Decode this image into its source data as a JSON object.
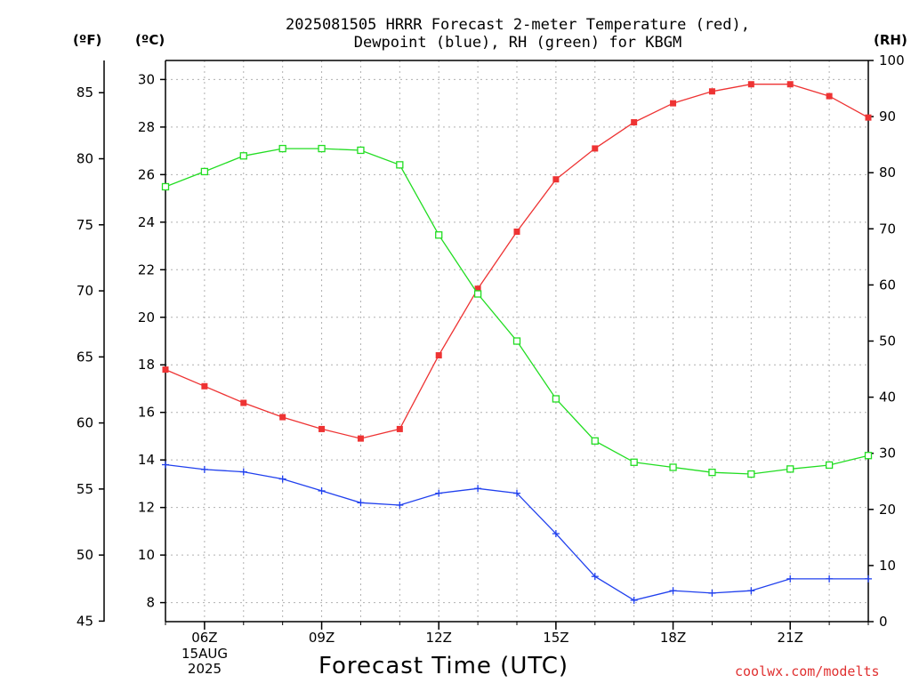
{
  "header": {
    "title_line1": "2025081505 HRRR Forecast 2-meter Temperature (red),",
    "title_line2": "Dewpoint (blue), RH (green) for KBGM",
    "unit_f": "(ºF)",
    "unit_c": "(ºC)",
    "unit_rh": "(RH)"
  },
  "footer": {
    "xlabel": "Forecast Time (UTC)",
    "credit": "coolwx.com/modelts",
    "date_day": "15AUG",
    "date_year": "2025"
  },
  "chart_data": {
    "type": "line",
    "title": "2025081505 HRRR Forecast 2-meter Temperature (red), Dewpoint (blue), RH (green) for KBGM",
    "xlabel": "Forecast Time (UTC)",
    "x_hours_utc": [
      5,
      6,
      7,
      8,
      9,
      10,
      11,
      12,
      13,
      14,
      15,
      16,
      17,
      18,
      19,
      20,
      21,
      22,
      23
    ],
    "xlim": [
      5,
      23
    ],
    "x_ticks": [
      {
        "hour": 6,
        "label": "06Z"
      },
      {
        "hour": 9,
        "label": "09Z"
      },
      {
        "hour": 12,
        "label": "12Z"
      },
      {
        "hour": 15,
        "label": "15Z"
      },
      {
        "hour": 18,
        "label": "18Z"
      },
      {
        "hour": 21,
        "label": "21Z"
      }
    ],
    "y_celsius": {
      "ylim": [
        7.2,
        30.8
      ],
      "ticks": [
        8,
        10,
        12,
        14,
        16,
        18,
        20,
        22,
        24,
        26,
        28,
        30
      ]
    },
    "y_fahrenheit": {
      "ticks": [
        45,
        50,
        55,
        60,
        65,
        70,
        75,
        80,
        85
      ]
    },
    "y_rh": {
      "ylim": [
        0,
        100
      ],
      "ticks": [
        0,
        10,
        20,
        30,
        40,
        50,
        60,
        70,
        80,
        90,
        100
      ]
    },
    "grid": true,
    "series": [
      {
        "name": "Temperature",
        "axis": "celsius",
        "color": "#ee3333",
        "marker": "filled-square",
        "values": [
          17.8,
          17.1,
          16.4,
          15.8,
          15.3,
          14.9,
          15.3,
          18.4,
          21.2,
          23.6,
          25.8,
          27.1,
          28.2,
          29.0,
          29.5,
          29.8,
          29.8,
          29.3,
          28.4
        ]
      },
      {
        "name": "Dewpoint",
        "axis": "celsius",
        "color": "#2040ee",
        "marker": "plus",
        "values": [
          13.8,
          13.6,
          13.5,
          13.2,
          12.7,
          12.2,
          12.1,
          12.6,
          12.8,
          12.6,
          10.9,
          9.1,
          8.1,
          8.5,
          8.4,
          8.5,
          9.0,
          9.0,
          9.0
        ]
      },
      {
        "name": "RH",
        "axis": "rh",
        "color": "#22dd22",
        "marker": "open-square",
        "values": [
          77.5,
          80.2,
          83.0,
          84.3,
          84.3,
          84.0,
          81.4,
          68.9,
          58.4,
          50.0,
          39.7,
          32.2,
          28.4,
          27.5,
          26.6,
          26.3,
          27.2,
          27.9,
          29.6
        ]
      }
    ]
  }
}
